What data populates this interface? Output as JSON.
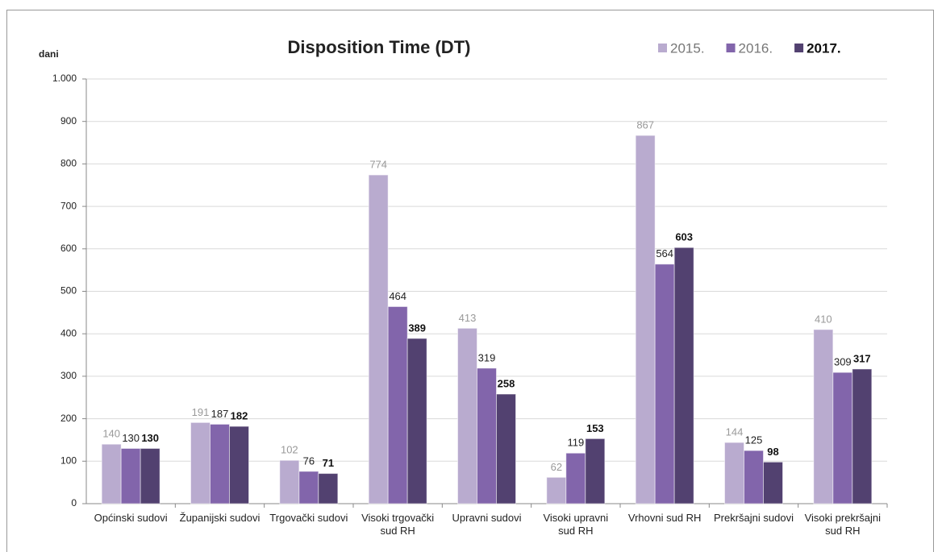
{
  "chart_data": {
    "type": "bar",
    "title": "Disposition Time (DT)",
    "y_label": "dani",
    "categories": [
      "Općinski sudovi",
      "Županijski sudovi",
      "Trgovački sudovi",
      "Visoki trgovački sud RH",
      "Upravni sudovi",
      "Visoki upravni sud RH",
      "Vrhovni sud RH",
      "Prekršajni sudovi",
      "Visoki prekršajni sud RH"
    ],
    "series": [
      {
        "name": "2015.",
        "color": "#b9abcf",
        "values": [
          140,
          191,
          102,
          774,
          413,
          62,
          867,
          144,
          410
        ]
      },
      {
        "name": "2016.",
        "color": "#8265ab",
        "values": [
          130,
          187,
          76,
          464,
          319,
          119,
          564,
          125,
          309
        ]
      },
      {
        "name": "2017.",
        "color": "#524170",
        "values": [
          130,
          182,
          71,
          389,
          258,
          153,
          603,
          98,
          317
        ]
      }
    ],
    "ylim": [
      0,
      1000
    ],
    "yticks": [
      0,
      100,
      200,
      300,
      400,
      500,
      600,
      700,
      800,
      900,
      {
        "value": 1000,
        "label": "1.000"
      }
    ],
    "grid": true,
    "legend": "top-right"
  }
}
